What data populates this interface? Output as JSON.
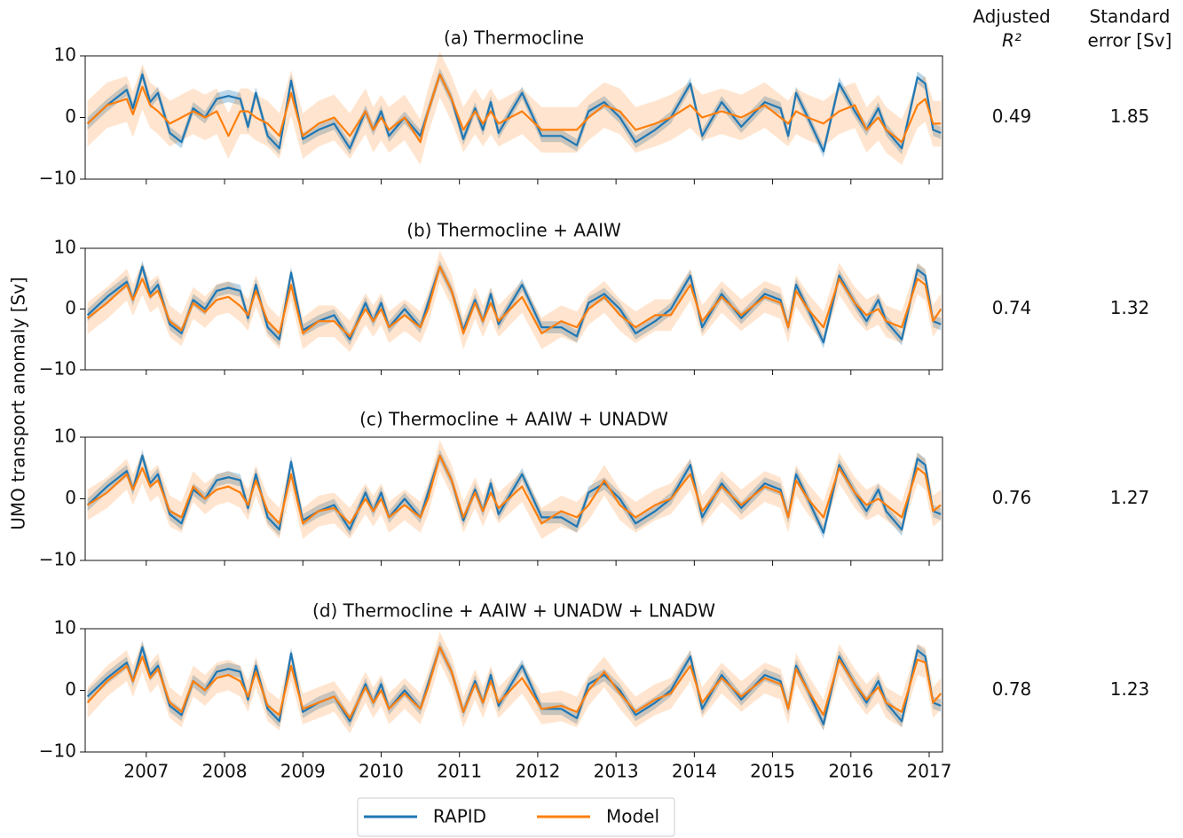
{
  "y_label": "UMO transport anomaly [Sv]",
  "stat_headers": [
    [
      "Adjusted",
      "R²"
    ],
    [
      "Standard",
      "error [Sv]"
    ]
  ],
  "chart_data": [
    {
      "type": "line",
      "title": "(a) Thermocline",
      "adjusted_r2": 0.49,
      "standard_error": 1.85,
      "xlim": [
        2006.22,
        2017.17
      ],
      "xticks": [
        2007,
        2008,
        2009,
        2010,
        2011,
        2012,
        2013,
        2014,
        2015,
        2016,
        2017
      ],
      "ylim": [
        -10,
        10
      ],
      "yticks": [
        {
          "value": -10,
          "label": "−10"
        },
        0,
        10
      ],
      "x": [
        2006.25,
        2006.5,
        2006.75,
        2006.83,
        2006.95,
        2007.05,
        2007.15,
        2007.3,
        2007.45,
        2007.6,
        2007.75,
        2007.9,
        2008.05,
        2008.2,
        2008.3,
        2008.4,
        2008.55,
        2008.7,
        2008.85,
        2009.0,
        2009.2,
        2009.4,
        2009.6,
        2009.8,
        2009.9,
        2010.0,
        2010.1,
        2010.3,
        2010.5,
        2010.6,
        2010.75,
        2010.9,
        2011.05,
        2011.2,
        2011.3,
        2011.4,
        2011.5,
        2011.8,
        2012.05,
        2012.3,
        2012.5,
        2012.65,
        2012.85,
        2013.05,
        2013.25,
        2013.5,
        2013.7,
        2013.95,
        2014.1,
        2014.35,
        2014.6,
        2014.9,
        2015.1,
        2015.2,
        2015.3,
        2015.45,
        2015.65,
        2015.85,
        2016.05,
        2016.2,
        2016.35,
        2016.45,
        2016.65,
        2016.85,
        2016.95,
        2017.05,
        2017.15
      ],
      "series": [
        {
          "name": "RAPID",
          "color": "#1f77b4",
          "band": 1,
          "values": [
            -1,
            2,
            4.5,
            1.5,
            7,
            2.5,
            4,
            -2.5,
            -4,
            1.5,
            0,
            3,
            3.5,
            3,
            -1.5,
            4,
            -3,
            -5,
            6,
            -3.5,
            -2,
            -1,
            -5,
            1,
            -2,
            1,
            -3,
            0,
            -3,
            1,
            7,
            3,
            -3.5,
            1.5,
            -2,
            2.5,
            -2.5,
            4,
            -3,
            -3,
            -4.5,
            1,
            2.5,
            0,
            -4,
            -2,
            0,
            5.5,
            -3,
            2.5,
            -1.5,
            2.5,
            1.5,
            -3,
            4,
            0,
            -5.5,
            5.5,
            1,
            -2,
            1.5,
            -2,
            -5,
            6.5,
            5.5,
            -2,
            -2.5
          ]
        },
        {
          "name": "Model",
          "color": "#ff7f0e",
          "band": 3.7,
          "values": [
            -1,
            2,
            3,
            0.5,
            5,
            2,
            1,
            -1,
            0,
            1,
            0,
            1,
            -3,
            1,
            1,
            0,
            -1,
            -3,
            4,
            -3,
            -1,
            0,
            -3,
            1,
            -2,
            0,
            -2,
            0,
            -4,
            1,
            7,
            3,
            -2,
            1,
            -1,
            1,
            -1,
            1,
            -2,
            -2,
            -2,
            0,
            2,
            1,
            -2,
            -1,
            0,
            2,
            0,
            1,
            0,
            2,
            0,
            -1,
            1,
            0,
            -1,
            1,
            2,
            -2,
            0,
            -2,
            -4,
            2,
            3,
            -1,
            -1
          ]
        }
      ]
    },
    {
      "type": "line",
      "title": "(b) Thermocline + AAIW",
      "adjusted_r2": 0.74,
      "standard_error": 1.32,
      "xlim": [
        2006.22,
        2017.17
      ],
      "xticks": [
        2007,
        2008,
        2009,
        2010,
        2011,
        2012,
        2013,
        2014,
        2015,
        2016,
        2017
      ],
      "ylim": [
        -10,
        10
      ],
      "yticks": [
        {
          "value": -10,
          "label": "−10"
        },
        0,
        10
      ],
      "x": [
        2006.25,
        2006.5,
        2006.75,
        2006.83,
        2006.95,
        2007.05,
        2007.15,
        2007.3,
        2007.45,
        2007.6,
        2007.75,
        2007.9,
        2008.05,
        2008.2,
        2008.3,
        2008.4,
        2008.55,
        2008.7,
        2008.85,
        2009.0,
        2009.2,
        2009.4,
        2009.6,
        2009.8,
        2009.9,
        2010.0,
        2010.1,
        2010.3,
        2010.5,
        2010.6,
        2010.75,
        2010.9,
        2011.05,
        2011.2,
        2011.3,
        2011.4,
        2011.5,
        2011.8,
        2012.05,
        2012.3,
        2012.5,
        2012.65,
        2012.85,
        2013.05,
        2013.25,
        2013.5,
        2013.7,
        2013.95,
        2014.1,
        2014.35,
        2014.6,
        2014.9,
        2015.1,
        2015.2,
        2015.3,
        2015.45,
        2015.65,
        2015.85,
        2016.05,
        2016.2,
        2016.35,
        2016.45,
        2016.65,
        2016.85,
        2016.95,
        2017.05,
        2017.15
      ],
      "series": [
        {
          "name": "RAPID",
          "color": "#1f77b4",
          "band": 1,
          "values": [
            -1,
            2,
            4.5,
            1.5,
            7,
            2.5,
            4,
            -2.5,
            -4,
            1.5,
            0,
            3,
            3.5,
            3,
            -1.5,
            4,
            -3,
            -5,
            6,
            -3.5,
            -2,
            -1,
            -5,
            1,
            -2,
            1,
            -3,
            0,
            -3,
            1,
            7,
            3,
            -3.5,
            1.5,
            -2,
            2.5,
            -2.5,
            4,
            -3,
            -3,
            -4.5,
            1,
            2.5,
            0,
            -4,
            -2,
            0,
            5.5,
            -3,
            2.5,
            -1.5,
            2.5,
            1.5,
            -3,
            4,
            0,
            -5.5,
            5.5,
            1,
            -2,
            1.5,
            -2,
            -5,
            6.5,
            5.5,
            -2,
            -2.5
          ]
        },
        {
          "name": "Model",
          "color": "#ff7f0e",
          "band": 2.6,
          "values": [
            -1.5,
            1,
            4,
            1.5,
            5,
            2,
            3,
            -2,
            -3.5,
            1,
            -0.5,
            1.5,
            2,
            0.5,
            -1,
            3,
            -2,
            -4,
            4,
            -4,
            -2,
            -2,
            -4.5,
            0,
            -2,
            0,
            -3,
            -1,
            -3,
            0,
            7,
            3,
            -4,
            1,
            -2,
            1,
            -2,
            2,
            -4,
            -2,
            -3,
            0,
            2,
            -1,
            -3,
            -1,
            -1,
            4,
            -2,
            2,
            -1,
            2,
            1,
            -3,
            3,
            0,
            -3,
            5,
            1,
            -1,
            0,
            -2,
            -3,
            5,
            4,
            -2,
            0
          ]
        }
      ]
    },
    {
      "type": "line",
      "title": "(c) Thermocline + AAIW + UNADW",
      "adjusted_r2": 0.76,
      "standard_error": 1.27,
      "xlim": [
        2006.22,
        2017.17
      ],
      "xticks": [
        2007,
        2008,
        2009,
        2010,
        2011,
        2012,
        2013,
        2014,
        2015,
        2016,
        2017
      ],
      "ylim": [
        -10,
        10
      ],
      "yticks": [
        {
          "value": -10,
          "label": "−10"
        },
        0,
        10
      ],
      "x": [
        2006.25,
        2006.5,
        2006.75,
        2006.83,
        2006.95,
        2007.05,
        2007.15,
        2007.3,
        2007.45,
        2007.6,
        2007.75,
        2007.9,
        2008.05,
        2008.2,
        2008.3,
        2008.4,
        2008.55,
        2008.7,
        2008.85,
        2009.0,
        2009.2,
        2009.4,
        2009.6,
        2009.8,
        2009.9,
        2010.0,
        2010.1,
        2010.3,
        2010.5,
        2010.6,
        2010.75,
        2010.9,
        2011.05,
        2011.2,
        2011.3,
        2011.4,
        2011.5,
        2011.8,
        2012.05,
        2012.3,
        2012.5,
        2012.65,
        2012.85,
        2013.05,
        2013.25,
        2013.5,
        2013.7,
        2013.95,
        2014.1,
        2014.35,
        2014.6,
        2014.9,
        2015.1,
        2015.2,
        2015.3,
        2015.45,
        2015.65,
        2015.85,
        2016.05,
        2016.2,
        2016.35,
        2016.45,
        2016.65,
        2016.85,
        2016.95,
        2017.05,
        2017.15
      ],
      "series": [
        {
          "name": "RAPID",
          "color": "#1f77b4",
          "band": 1,
          "values": [
            -1,
            2,
            4.5,
            1.5,
            7,
            2.5,
            4,
            -2.5,
            -4,
            1.5,
            0,
            3,
            3.5,
            3,
            -1.5,
            4,
            -3,
            -5,
            6,
            -3.5,
            -2,
            -1,
            -5,
            1,
            -2,
            1,
            -3,
            0,
            -3,
            1,
            7,
            3,
            -3.5,
            1.5,
            -2,
            2.5,
            -2.5,
            4,
            -3,
            -3,
            -4.5,
            1,
            2.5,
            0,
            -4,
            -2,
            0,
            5.5,
            -3,
            2.5,
            -1.5,
            2.5,
            1.5,
            -3,
            4,
            0,
            -5.5,
            5.5,
            1,
            -2,
            1.5,
            -2,
            -5,
            6.5,
            5.5,
            -2,
            -2.5
          ]
        },
        {
          "name": "Model",
          "color": "#ff7f0e",
          "band": 2.5,
          "values": [
            -1,
            1,
            4,
            1.5,
            5,
            2,
            3,
            -2,
            -3,
            2,
            0,
            1.5,
            2,
            1,
            -1,
            3,
            -2,
            -4,
            4,
            -4,
            -2,
            -1.5,
            -4,
            0,
            -2,
            0,
            -3,
            -1,
            -3,
            0,
            7,
            3,
            -3,
            1,
            -2,
            1,
            -1.5,
            2,
            -4,
            -2,
            -3,
            -1,
            3,
            -1,
            -3,
            -1,
            0,
            4,
            -2,
            2,
            -1,
            2,
            1,
            -3,
            3,
            0,
            -3,
            5,
            1,
            -1,
            0,
            -1,
            -3,
            5,
            4,
            -2,
            -1
          ]
        }
      ]
    },
    {
      "type": "line",
      "title": "(d) Thermocline + AAIW + UNADW + LNADW",
      "adjusted_r2": 0.78,
      "standard_error": 1.23,
      "xlim": [
        2006.22,
        2017.17
      ],
      "xticks": [
        2007,
        2008,
        2009,
        2010,
        2011,
        2012,
        2013,
        2014,
        2015,
        2016,
        2017
      ],
      "ylim": [
        -10,
        10
      ],
      "yticks": [
        {
          "value": -10,
          "label": "−10"
        },
        0,
        10
      ],
      "x": [
        2006.25,
        2006.5,
        2006.75,
        2006.83,
        2006.95,
        2007.05,
        2007.15,
        2007.3,
        2007.45,
        2007.6,
        2007.75,
        2007.9,
        2008.05,
        2008.2,
        2008.3,
        2008.4,
        2008.55,
        2008.7,
        2008.85,
        2009.0,
        2009.2,
        2009.4,
        2009.6,
        2009.8,
        2009.9,
        2010.0,
        2010.1,
        2010.3,
        2010.5,
        2010.6,
        2010.75,
        2010.9,
        2011.05,
        2011.2,
        2011.3,
        2011.4,
        2011.5,
        2011.8,
        2012.05,
        2012.3,
        2012.5,
        2012.65,
        2012.85,
        2013.05,
        2013.25,
        2013.5,
        2013.7,
        2013.95,
        2014.1,
        2014.35,
        2014.6,
        2014.9,
        2015.1,
        2015.2,
        2015.3,
        2015.45,
        2015.65,
        2015.85,
        2016.05,
        2016.2,
        2016.35,
        2016.45,
        2016.65,
        2016.85,
        2016.95,
        2017.05,
        2017.15
      ],
      "series": [
        {
          "name": "RAPID",
          "color": "#1f77b4",
          "band": 1,
          "values": [
            -1,
            2,
            4.5,
            1.5,
            7,
            2.5,
            4,
            -2.5,
            -4,
            1.5,
            0,
            3,
            3.5,
            3,
            -1.5,
            4,
            -3,
            -5,
            6,
            -3.5,
            -2,
            -1,
            -5,
            1,
            -2,
            1,
            -3,
            0,
            -3,
            1,
            7,
            3,
            -3.5,
            1.5,
            -2,
            2.5,
            -2.5,
            4,
            -3,
            -3,
            -4.5,
            1,
            2.5,
            0,
            -4,
            -2,
            0,
            5.5,
            -3,
            2.5,
            -1.5,
            2.5,
            1.5,
            -3,
            4,
            0,
            -5.5,
            5.5,
            1,
            -2,
            1.5,
            -2,
            -5,
            6.5,
            5.5,
            -2,
            -2.5
          ]
        },
        {
          "name": "Model",
          "color": "#ff7f0e",
          "band": 2.5,
          "values": [
            -2,
            1.5,
            4,
            1.5,
            5.5,
            2,
            3.5,
            -2,
            -3.5,
            1.5,
            0,
            2,
            2.5,
            1.5,
            -1,
            3,
            -2.5,
            -4,
            4,
            -3,
            -2,
            -1,
            -4.5,
            0.5,
            -2,
            0,
            -3,
            -0.5,
            -3,
            0.5,
            7,
            3,
            -3.5,
            1,
            -2,
            1.5,
            -2,
            2,
            -3,
            -2.5,
            -3.5,
            0,
            3,
            -0.5,
            -3.5,
            -1.5,
            -0.5,
            4,
            -2,
            2,
            -1,
            2,
            1,
            -3,
            3.5,
            0,
            -4,
            5,
            1,
            -1.5,
            0.5,
            -2,
            -3.5,
            5,
            4.5,
            -2,
            -0.5
          ]
        }
      ]
    }
  ]
}
